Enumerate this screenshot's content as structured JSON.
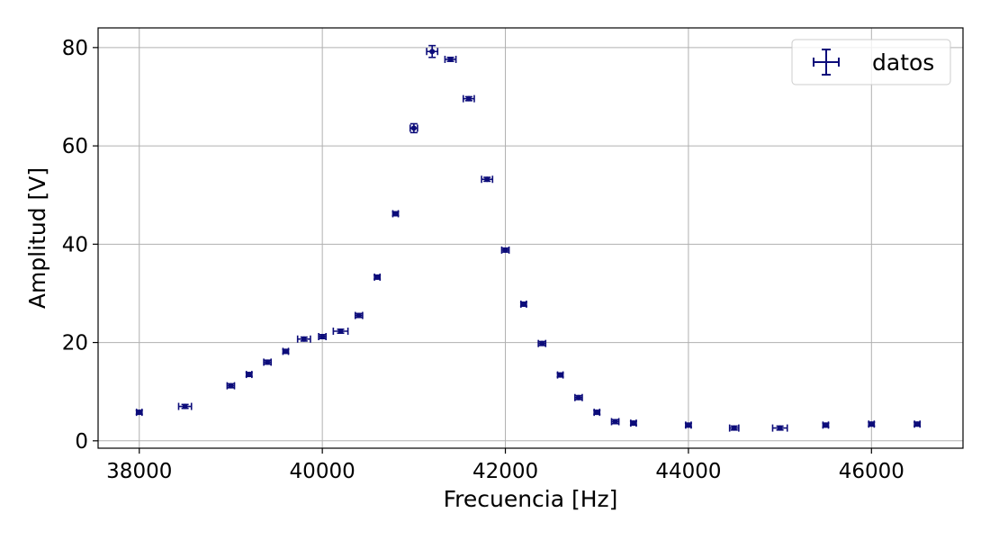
{
  "chart_data": {
    "type": "scatter",
    "title": "",
    "xlabel": "Frecuencia [Hz]",
    "ylabel": "Amplitud [V]",
    "xlim": [
      37550,
      47000
    ],
    "ylim": [
      -1.5,
      84
    ],
    "xticks": [
      38000,
      40000,
      42000,
      44000,
      46000
    ],
    "yticks": [
      0,
      20,
      40,
      60,
      80
    ],
    "grid": true,
    "legend_position": "top-right",
    "colors": {
      "series": "#0c0c7a",
      "grid": "#b0b0b0",
      "axes": "#000000"
    },
    "series": [
      {
        "name": "datos",
        "marker": "errorbar-point",
        "x": [
          38000,
          38500,
          39000,
          39200,
          39400,
          39600,
          39800,
          40000,
          40200,
          40400,
          40600,
          40800,
          41000,
          41200,
          41400,
          41600,
          41800,
          42000,
          42200,
          42400,
          42600,
          42800,
          43000,
          43200,
          43400,
          44000,
          44500,
          45000,
          45500,
          46000,
          46500
        ],
        "y": [
          5.8,
          7.0,
          11.2,
          13.5,
          16.0,
          18.2,
          20.7,
          21.2,
          22.3,
          25.5,
          33.3,
          46.2,
          63.6,
          79.2,
          77.6,
          69.6,
          53.2,
          38.8,
          27.8,
          19.8,
          13.4,
          8.8,
          5.8,
          3.9,
          3.6,
          3.2,
          2.6,
          2.6,
          3.2,
          3.4,
          3.4
        ],
        "xerr": [
          30,
          70,
          40,
          30,
          40,
          30,
          70,
          40,
          80,
          40,
          30,
          30,
          40,
          60,
          60,
          60,
          60,
          40,
          30,
          40,
          30,
          40,
          30,
          40,
          30,
          30,
          50,
          80,
          30,
          30,
          30
        ],
        "yerr": [
          0.4,
          0.4,
          0.4,
          0.4,
          0.4,
          0.4,
          0.4,
          0.4,
          0.4,
          0.4,
          0.4,
          0.4,
          0.9,
          1.2,
          0.4,
          0.4,
          0.4,
          0.4,
          0.4,
          0.4,
          0.4,
          0.4,
          0.4,
          0.4,
          0.4,
          0.4,
          0.4,
          0.4,
          0.4,
          0.4,
          0.4
        ]
      }
    ]
  }
}
